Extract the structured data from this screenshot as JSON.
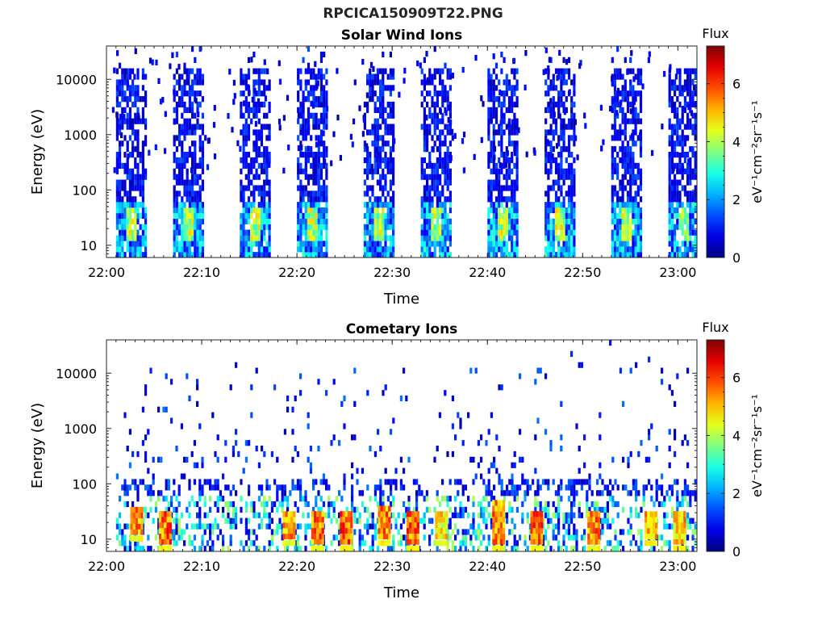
{
  "figure": {
    "title": "RPCICA150909T22.PNG"
  },
  "chart_data": [
    {
      "type": "heatmap",
      "title": "Solar Wind Ions",
      "xlabel": "Time",
      "ylabel": "Energy (eV)",
      "yscale": "log",
      "xlim": [
        "22:00",
        "23:02"
      ],
      "ylim": [
        6,
        40000
      ],
      "x_ticks": [
        "22:00",
        "22:10",
        "22:20",
        "22:30",
        "22:40",
        "22:50",
        "23:00"
      ],
      "y_ticks": [
        "10",
        "100",
        "1000",
        "10000"
      ],
      "colorbar": {
        "title": "Flux",
        "label": "eV⁻¹cm⁻²sr⁻¹s⁻¹",
        "range": [
          0,
          7.3
        ],
        "ticks": [
          "0",
          "2",
          "4",
          "6"
        ]
      },
      "active_intervals": [
        {
          "start": "22:01",
          "end": "22:04"
        },
        {
          "start": "22:07",
          "end": "22:10"
        },
        {
          "start": "22:14",
          "end": "22:17"
        },
        {
          "start": "22:20",
          "end": "22:23"
        },
        {
          "start": "22:27",
          "end": "22:30"
        },
        {
          "start": "22:33",
          "end": "22:36"
        },
        {
          "start": "22:40",
          "end": "22:43"
        },
        {
          "start": "22:46",
          "end": "22:49"
        },
        {
          "start": "22:53",
          "end": "22:56"
        },
        {
          "start": "22:59",
          "end": "23:02"
        }
      ],
      "dominant_energy_range_eV": [
        10,
        15000
      ],
      "typical_flux": [
        0.3,
        3.5
      ]
    },
    {
      "type": "heatmap",
      "title": "Cometary Ions",
      "xlabel": "Time",
      "ylabel": "Energy (eV)",
      "yscale": "log",
      "xlim": [
        "22:00",
        "23:02"
      ],
      "ylim": [
        6,
        40000
      ],
      "x_ticks": [
        "22:00",
        "22:10",
        "22:20",
        "22:30",
        "22:40",
        "22:50",
        "23:00"
      ],
      "y_ticks": [
        "10",
        "100",
        "1000",
        "10000"
      ],
      "colorbar": {
        "title": "Flux",
        "label": "eV⁻¹cm⁻²sr⁻¹s⁻¹",
        "range": [
          0,
          7.3
        ],
        "ticks": [
          "0",
          "2",
          "4",
          "6"
        ]
      },
      "high_flux_bursts": [
        {
          "time": "22:03",
          "energy_eV": [
            12,
            35
          ],
          "flux": 6.2
        },
        {
          "time": "22:06",
          "energy_eV": [
            8,
            30
          ],
          "flux": 6.5
        },
        {
          "time": "22:19",
          "energy_eV": [
            10,
            30
          ],
          "flux": 6.0
        },
        {
          "time": "22:22",
          "energy_eV": [
            8,
            30
          ],
          "flux": 6.4
        },
        {
          "time": "22:25",
          "energy_eV": [
            8,
            30
          ],
          "flux": 6.6
        },
        {
          "time": "22:29",
          "energy_eV": [
            10,
            40
          ],
          "flux": 6.3
        },
        {
          "time": "22:32",
          "energy_eV": [
            8,
            30
          ],
          "flux": 6.5
        },
        {
          "time": "22:35",
          "energy_eV": [
            10,
            30
          ],
          "flux": 5.5
        },
        {
          "time": "22:41",
          "energy_eV": [
            8,
            45
          ],
          "flux": 6.2
        },
        {
          "time": "22:45",
          "energy_eV": [
            8,
            30
          ],
          "flux": 6.5
        },
        {
          "time": "22:51",
          "energy_eV": [
            8,
            30
          ],
          "flux": 6.3
        },
        {
          "time": "22:57",
          "energy_eV": [
            10,
            30
          ],
          "flux": 6.0
        },
        {
          "time": "23:00",
          "energy_eV": [
            8,
            30
          ],
          "flux": 5.8
        }
      ],
      "dominant_energy_range_eV": [
        8,
        100
      ],
      "typical_flux": [
        0.5,
        6.8
      ]
    }
  ]
}
